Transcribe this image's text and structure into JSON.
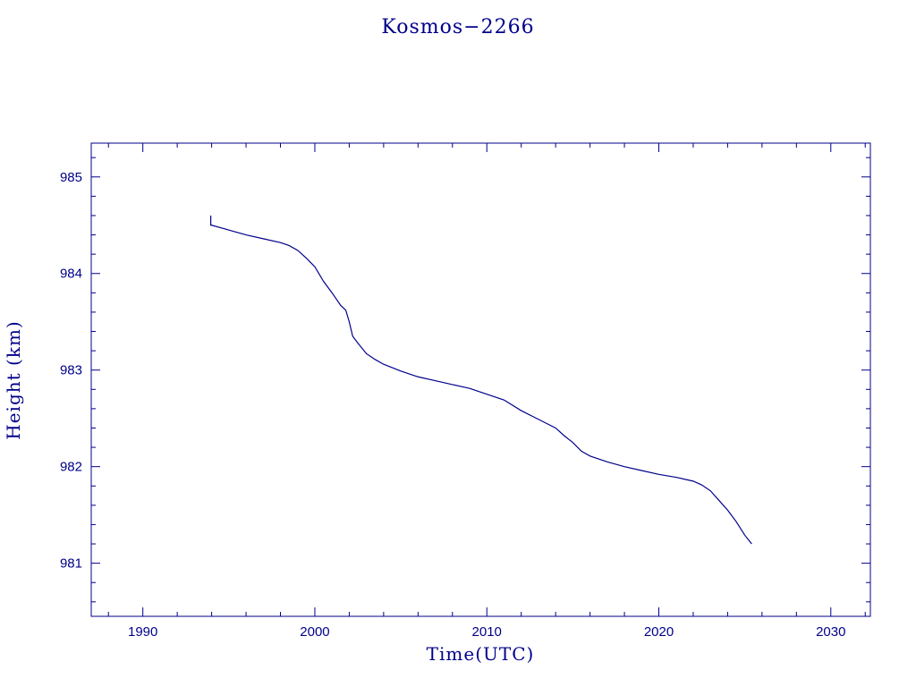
{
  "chart_data": {
    "type": "line",
    "title": "Kosmos−2266",
    "xlabel": "Time(UTC)",
    "ylabel": "Height (km)",
    "xlim": [
      1987.0,
      2032.3
    ],
    "ylim": [
      980.45,
      985.35
    ],
    "x_ticks": [
      1990,
      2000,
      2010,
      2020,
      2030
    ],
    "x_tick_labels": [
      "1990",
      "2000",
      "2010",
      "2020",
      "2030"
    ],
    "y_ticks": [
      981,
      982,
      983,
      984,
      985
    ],
    "y_tick_labels": [
      "981",
      "982",
      "983",
      "984",
      "985"
    ],
    "grid": false,
    "color": "#00008b",
    "series": [
      {
        "name": "",
        "x": [
          1993.95,
          1993.95,
          1994.0,
          1995.0,
          1996.0,
          1997.0,
          1998.0,
          1998.5,
          1999.0,
          1999.5,
          2000.0,
          2000.5,
          2001.0,
          2001.5,
          2001.8,
          2002.0,
          2002.2,
          2002.5,
          2003.0,
          2003.5,
          2004.0,
          2005.0,
          2006.0,
          2007.0,
          2008.0,
          2009.0,
          2010.0,
          2011.0,
          2012.0,
          2013.0,
          2014.0,
          2014.5,
          2015.0,
          2015.5,
          2016.0,
          2017.0,
          2018.0,
          2019.0,
          2020.0,
          2021.0,
          2022.0,
          2022.5,
          2023.0,
          2023.5,
          2024.0,
          2024.5,
          2025.0,
          2025.4
        ],
        "y": [
          984.6,
          984.5,
          984.5,
          984.45,
          984.4,
          984.36,
          984.32,
          984.29,
          984.24,
          984.16,
          984.07,
          983.92,
          983.8,
          983.67,
          983.62,
          983.5,
          983.35,
          983.28,
          983.17,
          983.11,
          983.06,
          982.99,
          982.93,
          982.89,
          982.85,
          982.81,
          982.75,
          982.69,
          982.58,
          982.49,
          982.4,
          982.32,
          982.25,
          982.16,
          982.11,
          982.05,
          982.0,
          981.96,
          981.92,
          981.89,
          981.85,
          981.81,
          981.75,
          981.65,
          981.55,
          981.43,
          981.29,
          981.2
        ]
      }
    ]
  }
}
